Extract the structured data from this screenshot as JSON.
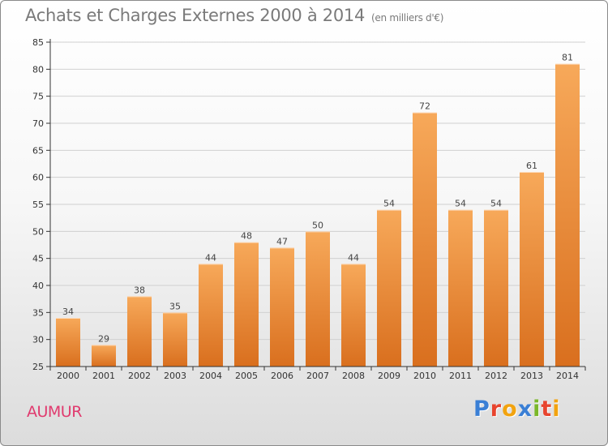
{
  "header": {
    "title": "Achats et Charges Externes 2000 à 2014",
    "unit": "(en milliers d'€)"
  },
  "footer": {
    "town": "AUMUR",
    "logo": "Proxiti",
    "logo_colors": [
      "#3a7fd5",
      "#e8442e",
      "#f2a30f",
      "#3a7fd5",
      "#7bb82a",
      "#e8442e",
      "#f2a30f"
    ]
  },
  "colors": {
    "bar_light": "#f7a95a",
    "bar_dark": "#d96f1e",
    "grid": "#d0d0d0",
    "axis": "#333333",
    "title": "#7a7a7a",
    "town": "#e03a6e"
  },
  "chart_data": {
    "type": "bar",
    "title": "Achats et Charges Externes 2000 à 2014",
    "subtitle": "(en milliers d'€)",
    "categories": [
      "2000",
      "2001",
      "2002",
      "2003",
      "2004",
      "2005",
      "2006",
      "2007",
      "2008",
      "2009",
      "2010",
      "2011",
      "2012",
      "2013",
      "2014"
    ],
    "values": [
      34,
      29,
      38,
      35,
      44,
      48,
      47,
      50,
      44,
      54,
      72,
      54,
      54,
      61,
      81
    ],
    "ylim": [
      25,
      85
    ],
    "yticks": [
      25,
      30,
      35,
      40,
      45,
      50,
      55,
      60,
      65,
      70,
      75,
      80,
      85
    ],
    "xlabel": "",
    "ylabel": "",
    "grid": true,
    "data_labels": true
  }
}
